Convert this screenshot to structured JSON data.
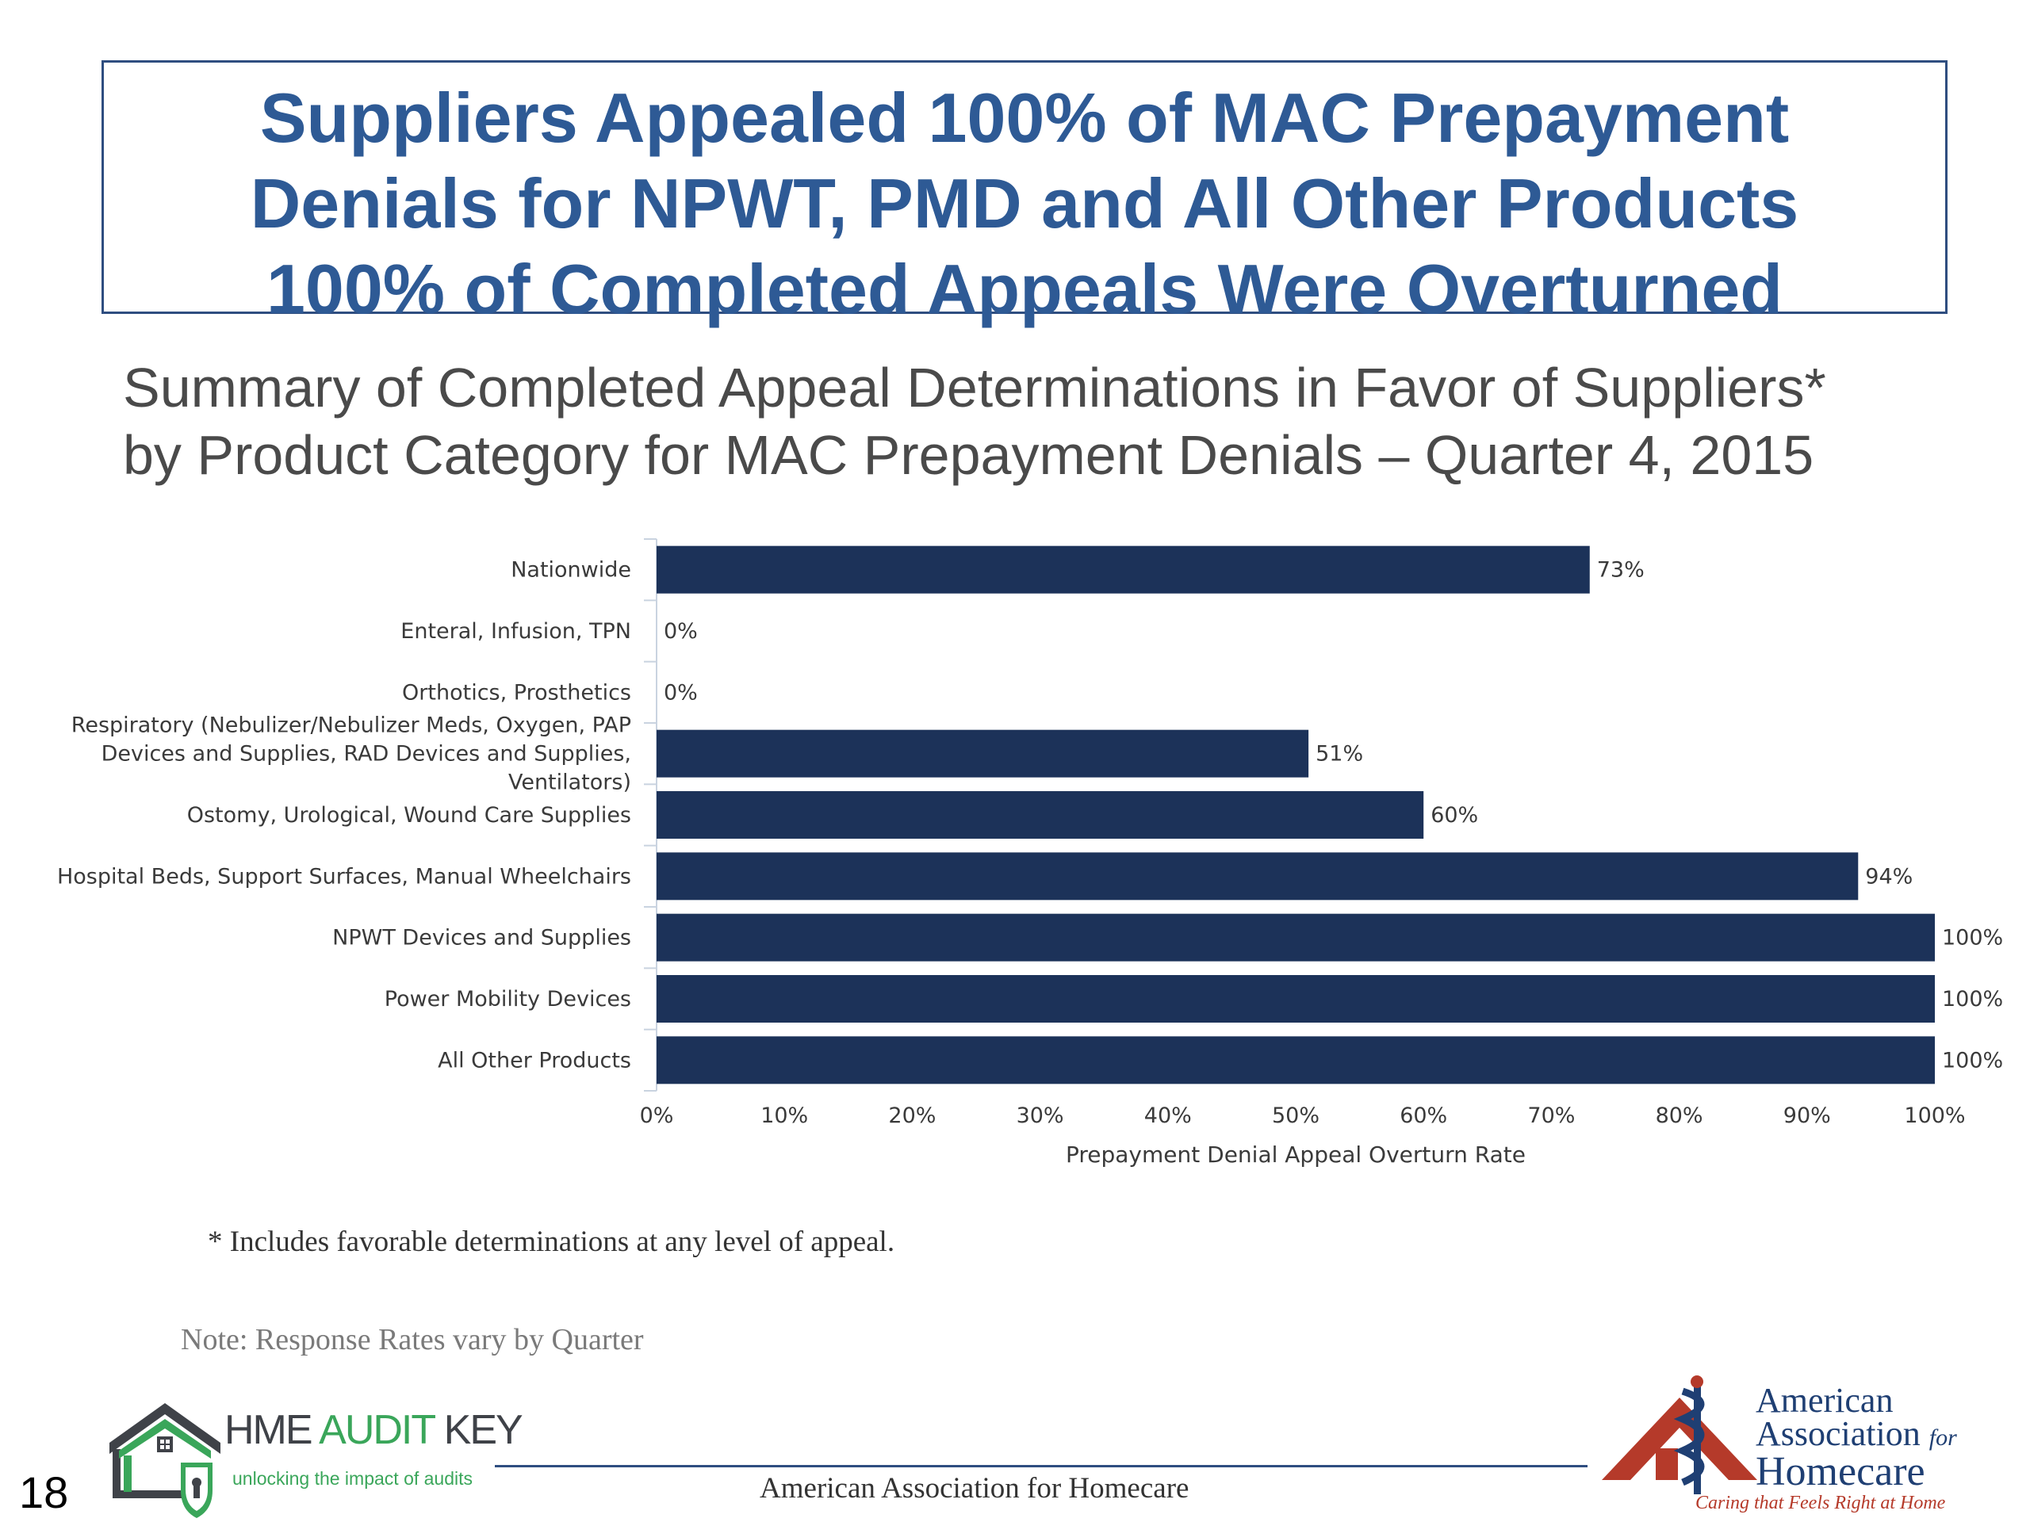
{
  "headline": {
    "line1": "Suppliers Appealed 100% of MAC Prepayment",
    "line2": "Denials for NPWT, PMD and All Other Products",
    "line3": "100% of Completed Appeals Were Overturned"
  },
  "subtitle": {
    "line1": "Summary of Completed Appeal Determinations in Favor of Suppliers*",
    "line2": "by Product Category for MAC Prepayment Denials – Quarter 4, 2015"
  },
  "chart_data": {
    "type": "bar",
    "orientation": "horizontal",
    "categories": [
      [
        "Nationwide"
      ],
      [
        "Enteral, Infusion, TPN"
      ],
      [
        "Orthotics, Prosthetics"
      ],
      [
        "Respiratory (Nebulizer/Nebulizer Meds, Oxygen, PAP",
        "Devices and Supplies, RAD Devices and Supplies,",
        "Ventilators)"
      ],
      [
        "Ostomy, Urological, Wound Care Supplies"
      ],
      [
        "Hospital Beds, Support Surfaces, Manual Wheelchairs"
      ],
      [
        "NPWT Devices and Supplies"
      ],
      [
        "Power Mobility Devices"
      ],
      [
        "All Other Products"
      ]
    ],
    "values": [
      73,
      0,
      0,
      51,
      60,
      94,
      100,
      100,
      100
    ],
    "value_labels": [
      "73%",
      "0%",
      "0%",
      "51%",
      "60%",
      "94%",
      "100%",
      "100%",
      "100%"
    ],
    "xlim": [
      0,
      100
    ],
    "xticks": [
      "0%",
      "10%",
      "20%",
      "30%",
      "40%",
      "50%",
      "60%",
      "70%",
      "80%",
      "90%",
      "100%"
    ],
    "xlabel": "Prepayment Denial Appeal Overturn Rate",
    "bar_color": "#1c3259",
    "grid": false,
    "legend": "none"
  },
  "footnote": "* Includes favorable determinations at any level of appeal.",
  "note": "Note: Response Rates vary by Quarter",
  "page_number": "18",
  "footer_text": "American Association for Homecare",
  "logo_hme": {
    "title_part1": "HME ",
    "title_part2": "AUDIT",
    "title_part3": " KEY",
    "tagline": "unlocking the impact of audits"
  },
  "logo_aahc": {
    "line1": "American",
    "line2": "Association",
    "line2_for": "for",
    "line3": "Homecare",
    "tagline": "Caring that Feels Right at Home"
  },
  "colors": {
    "headline": "#2e5a95",
    "border": "#2f4e80",
    "bar": "#1c3259",
    "hme_green": "#3aa65a",
    "aahc_red": "#b53a2a"
  }
}
